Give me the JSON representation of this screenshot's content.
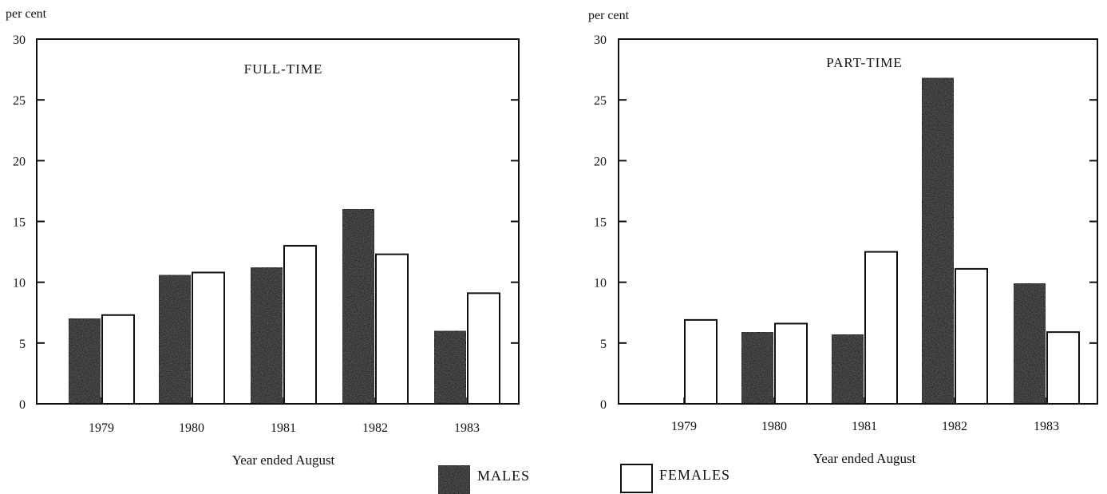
{
  "chart_data": [
    {
      "type": "bar",
      "title": "FULL-TIME",
      "ylabel": "per cent",
      "xlabel": "Year ended August",
      "ylim": [
        0,
        30
      ],
      "yticks": [
        0,
        5,
        10,
        15,
        20,
        25,
        30
      ],
      "categories": [
        "1979",
        "1980",
        "1981",
        "1982",
        "1983"
      ],
      "series": [
        {
          "name": "MALES",
          "values": [
            7.0,
            10.6,
            11.2,
            16.0,
            6.0
          ]
        },
        {
          "name": "FEMALES",
          "values": [
            7.3,
            10.8,
            13.0,
            12.3,
            9.1
          ]
        }
      ]
    },
    {
      "type": "bar",
      "title": "PART-TIME",
      "ylabel": "per cent",
      "xlabel": "Year ended August",
      "ylim": [
        0,
        30
      ],
      "yticks": [
        0,
        5,
        10,
        15,
        20,
        25,
        30
      ],
      "categories": [
        "1979",
        "1980",
        "1981",
        "1982",
        "1983"
      ],
      "series": [
        {
          "name": "MALES",
          "values": [
            0,
            5.9,
            5.7,
            26.8,
            9.9
          ]
        },
        {
          "name": "FEMALES",
          "values": [
            6.9,
            6.6,
            12.5,
            11.1,
            5.9
          ]
        }
      ]
    }
  ],
  "legend": {
    "males_label": "MALES",
    "females_label": "FEMALES"
  },
  "colors": {
    "males_fill": "#2a2a2a",
    "females_fill": "#ffffff",
    "axis": "#111111"
  }
}
